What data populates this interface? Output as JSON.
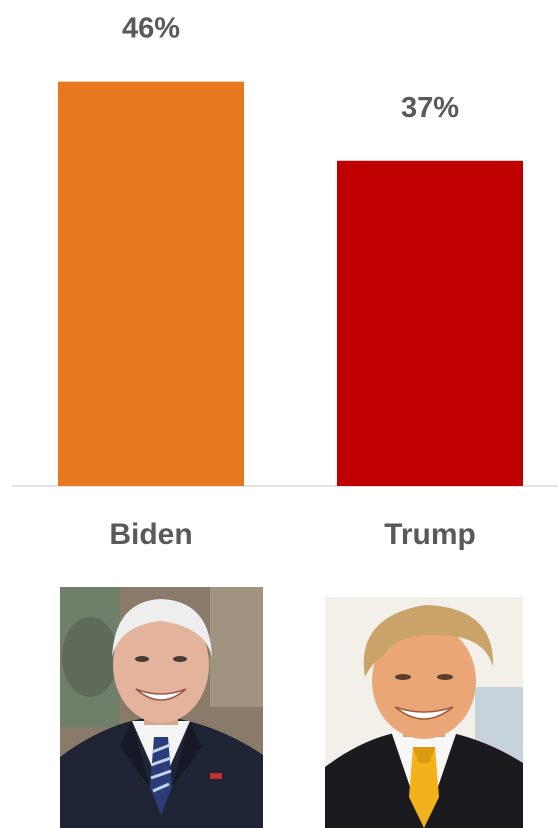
{
  "chart_data": {
    "type": "bar",
    "categories": [
      "Biden",
      "Trump"
    ],
    "values": [
      46,
      37
    ],
    "data_labels": [
      "46%",
      "37%"
    ],
    "colors": [
      "#E87722",
      "#C00000"
    ],
    "ylim": [
      0,
      50
    ],
    "grid": false,
    "legend": "none",
    "title": "",
    "xlabel": "",
    "ylabel": ""
  },
  "photos": [
    {
      "icon": "biden-portrait-photo"
    },
    {
      "icon": "trump-portrait-photo"
    }
  ]
}
